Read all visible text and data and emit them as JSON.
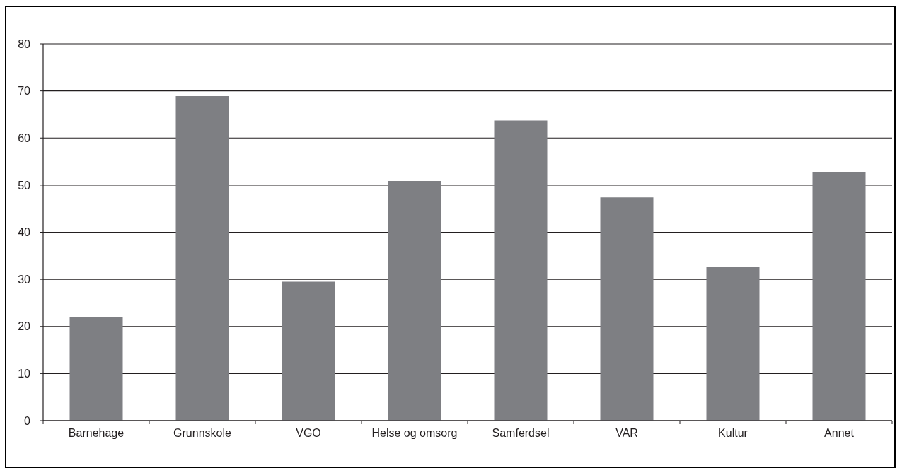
{
  "chart_data": {
    "type": "bar",
    "categories": [
      "Barnehage",
      "Grunnskole",
      "VGO",
      "Helse og omsorg",
      "Samferdsel",
      "VAR",
      "Kultur",
      "Annet"
    ],
    "values": [
      21.9,
      68.9,
      29.5,
      50.9,
      63.7,
      47.4,
      32.6,
      52.8
    ],
    "color": "#7e7f83",
    "ylim": [
      0,
      80
    ],
    "yticks": [
      0,
      10,
      20,
      30,
      40,
      50,
      60,
      70,
      80
    ],
    "grid": "y"
  }
}
